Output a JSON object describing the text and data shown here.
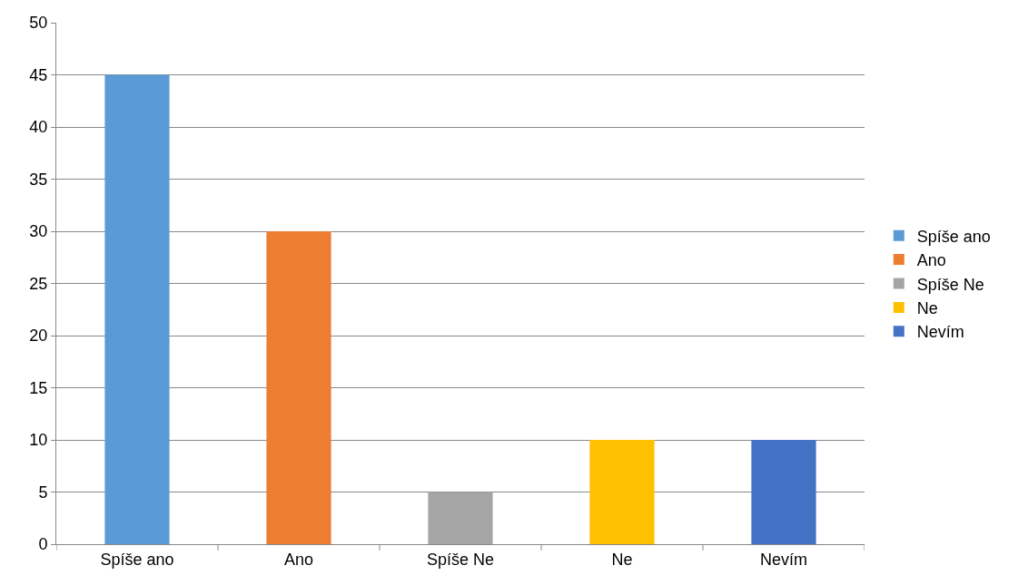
{
  "chart_data": {
    "type": "bar",
    "categories": [
      "Spíše ano",
      "Ano",
      "Spíše Ne",
      "Ne",
      "Nevím"
    ],
    "series": [
      {
        "name": "Spíše ano",
        "color": "#5b9bd5",
        "values": [
          45,
          null,
          null,
          null,
          null
        ]
      },
      {
        "name": "Ano",
        "color": "#ed7d31",
        "values": [
          null,
          30,
          null,
          null,
          null
        ]
      },
      {
        "name": "Spíše Ne",
        "color": "#a5a5a5",
        "values": [
          null,
          null,
          5,
          null,
          null
        ]
      },
      {
        "name": "Ne",
        "color": "#ffc000",
        "values": [
          null,
          null,
          null,
          10,
          null
        ]
      },
      {
        "name": "Nevím",
        "color": "#4472c4",
        "values": [
          null,
          null,
          null,
          null,
          10
        ]
      }
    ],
    "ylim": [
      0,
      50
    ],
    "yticks": [
      0,
      5,
      10,
      15,
      20,
      25,
      30,
      35,
      40,
      45,
      50
    ],
    "grid": "y",
    "legend": "right"
  }
}
